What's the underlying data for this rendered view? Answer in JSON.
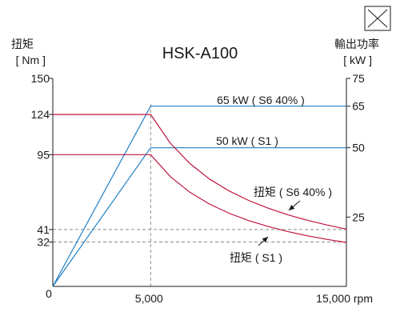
{
  "chart_data": {
    "type": "line",
    "title": "HSK-A100",
    "left_axis": {
      "label": "扭矩",
      "unit": "[ Nm ]",
      "ylim": [
        0,
        150
      ],
      "ticks": [
        "0",
        "32",
        "41",
        "95",
        "124",
        "150"
      ]
    },
    "right_axis": {
      "label": "輸出功率",
      "unit": "[ kW ]",
      "ylim": [
        0,
        75
      ],
      "ticks": [
        "25",
        "50",
        "65",
        "75"
      ]
    },
    "x_axis": {
      "xlim": [
        0,
        15000
      ],
      "ticks": [
        "0",
        "5,000",
        "15,000 rpm"
      ]
    },
    "series": [
      {
        "name": "65 kW ( S6 40% )",
        "axis": "right",
        "color": "#1f7fc4",
        "points": [
          [
            0,
            0
          ],
          [
            5000,
            65
          ],
          [
            15000,
            65
          ]
        ]
      },
      {
        "name": "50 kW ( S1 )",
        "axis": "right",
        "color": "#1f7fc4",
        "points": [
          [
            0,
            0
          ],
          [
            5000,
            50
          ],
          [
            15000,
            50
          ]
        ]
      },
      {
        "name": "扭矩 ( S6 40% )",
        "axis": "left",
        "color": "#c0143c",
        "points": [
          [
            0,
            124
          ],
          [
            5000,
            124
          ],
          [
            6000,
            103.3
          ],
          [
            7000,
            88.6
          ],
          [
            8000,
            77.5
          ],
          [
            9000,
            68.9
          ],
          [
            10000,
            62.0
          ],
          [
            11000,
            56.4
          ],
          [
            12000,
            51.7
          ],
          [
            13000,
            47.7
          ],
          [
            14000,
            44.3
          ],
          [
            15000,
            41.3
          ]
        ]
      },
      {
        "name": "扭矩 ( S1 )",
        "axis": "left",
        "color": "#c0143c",
        "points": [
          [
            0,
            95
          ],
          [
            5000,
            95
          ],
          [
            6000,
            79.2
          ],
          [
            7000,
            67.9
          ],
          [
            8000,
            59.4
          ],
          [
            9000,
            52.8
          ],
          [
            10000,
            47.5
          ],
          [
            11000,
            43.2
          ],
          [
            12000,
            39.6
          ],
          [
            13000,
            36.5
          ],
          [
            14000,
            33.9
          ],
          [
            15000,
            31.7
          ]
        ]
      }
    ],
    "reference_lines": [
      {
        "axis": "x",
        "value": 5000,
        "style": "dashed"
      },
      {
        "axis": "left",
        "value": 41,
        "style": "dashed"
      },
      {
        "axis": "left",
        "value": 32,
        "style": "dashed"
      }
    ],
    "annotations": [
      {
        "text": "65 kW ( S6 40% )",
        "for": "65 kW ( S6 40% )"
      },
      {
        "text": "50 kW ( S1 )",
        "for": "50 kW ( S1 )"
      },
      {
        "text": "扭矩 ( S6 40% )",
        "for": "扭矩 ( S6 40% )",
        "arrow": true
      },
      {
        "text": "扭矩 ( S1 )",
        "for": "扭矩 ( S1 )",
        "arrow": true
      }
    ],
    "grid": false
  },
  "ui": {
    "close_icon": "close-icon"
  }
}
